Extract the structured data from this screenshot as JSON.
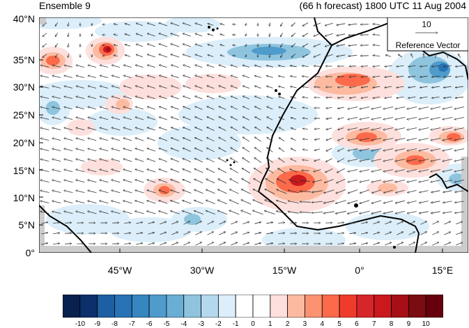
{
  "header": {
    "left_title": "Ensemble 9",
    "right_title": "(66 h forecast) 1800 UTC 11 Aug 2004"
  },
  "map": {
    "lon_range": [
      -60,
      20
    ],
    "lat_range": [
      0,
      40
    ],
    "lat_ticks": [
      "0°",
      "5°N",
      "10°N",
      "15°N",
      "20°N",
      "25°N",
      "30°N",
      "35°N",
      "40°N"
    ],
    "lon_ticks": [
      "45°W",
      "30°W",
      "15°W",
      "0°",
      "15°E"
    ],
    "reference_vector": {
      "value": "10",
      "label": "Reference Vector"
    }
  },
  "colorbar": {
    "labels": [
      "-10",
      "-9",
      "-8",
      "-7",
      "-6",
      "-5",
      "-4",
      "-3",
      "-2",
      "-1",
      "0",
      "1",
      "2",
      "3",
      "4",
      "5",
      "6",
      "7",
      "8",
      "9",
      "10"
    ],
    "colors": [
      "#08214e",
      "#0b306b",
      "#1d5fa2",
      "#2873b6",
      "#3686c0",
      "#4f9bcb",
      "#6aaed6",
      "#8ec4de",
      "#b4d8ec",
      "#dbeef9",
      "#ffffff",
      "#ffffff",
      "#fde0dd",
      "#fcbba1",
      "#fc9272",
      "#fb6a4a",
      "#ef3b2c",
      "#d7262a",
      "#cb181d",
      "#a50f15",
      "#7b0c12",
      "#67000d"
    ]
  }
}
